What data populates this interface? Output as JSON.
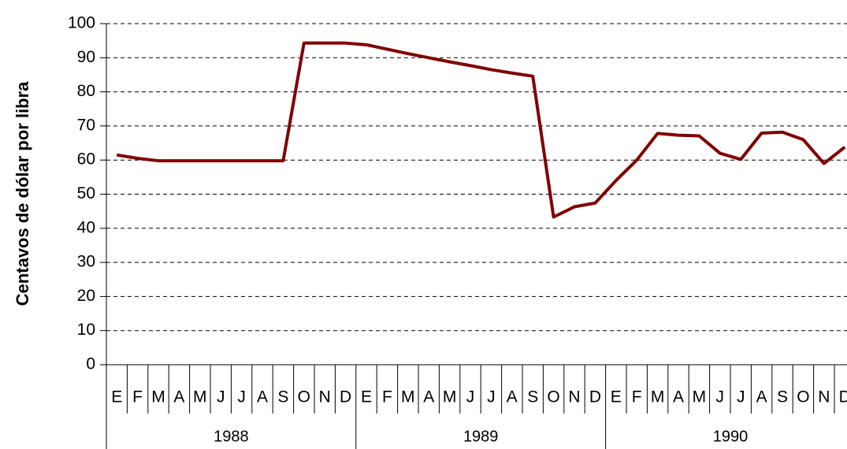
{
  "chart_data": {
    "type": "line",
    "y_label": "Centavos de dólar por libra",
    "categories": [
      "E",
      "F",
      "M",
      "A",
      "M",
      "J",
      "J",
      "A",
      "S",
      "O",
      "N",
      "D",
      "E",
      "F",
      "M",
      "A",
      "M",
      "J",
      "J",
      "A",
      "S",
      "O",
      "N",
      "D",
      "E",
      "F",
      "M",
      "A",
      "M",
      "J",
      "J",
      "A",
      "S",
      "O",
      "N",
      "D"
    ],
    "years": [
      "1988",
      "1989",
      "1990"
    ],
    "series": [
      {
        "name": null,
        "color": "#800000",
        "values": [
          61.5,
          60.5,
          59.8,
          59.8,
          59.8,
          59.8,
          59.8,
          59.8,
          59.8,
          94.3,
          94.3,
          94.3,
          93.8,
          92.5,
          91.2,
          90,
          88.8,
          87.7,
          86.5,
          85.5,
          84.6,
          43.3,
          46.3,
          47.4,
          54,
          60,
          67.8,
          67.3,
          67.1,
          62,
          60.2,
          67.9,
          68.2,
          66,
          59,
          63.8
        ]
      }
    ],
    "ylim": [
      0,
      100
    ],
    "yticks": [
      0,
      10,
      20,
      30,
      40,
      50,
      60,
      70,
      80,
      90,
      100
    ],
    "grid": true
  }
}
